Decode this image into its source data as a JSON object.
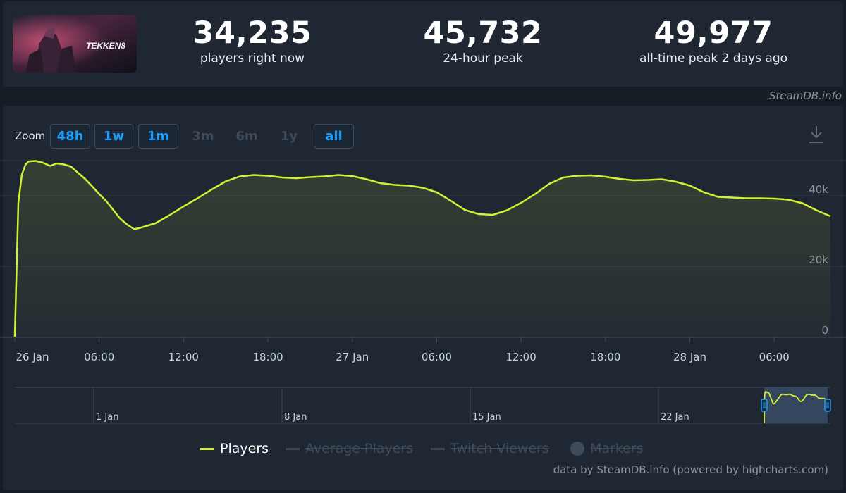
{
  "stats": [
    {
      "value": "34,235",
      "label": "players right now"
    },
    {
      "value": "45,732",
      "label": "24-hour peak"
    },
    {
      "value": "49,977",
      "label": "all-time peak 2 days ago"
    }
  ],
  "game": {
    "logo_text": "TEKKEN8"
  },
  "credit_top": "SteamDB.info",
  "zoom": {
    "label": "Zoom",
    "buttons": [
      {
        "label": "48h",
        "state": "enabled"
      },
      {
        "label": "1w",
        "state": "enabled"
      },
      {
        "label": "1m",
        "state": "enabled"
      },
      {
        "label": "3m",
        "state": "disabled"
      },
      {
        "label": "6m",
        "state": "disabled"
      },
      {
        "label": "1y",
        "state": "disabled"
      },
      {
        "label": "all",
        "state": "selected"
      }
    ]
  },
  "legend": [
    {
      "label": "Players",
      "active": true
    },
    {
      "label": "Average Players",
      "active": false
    },
    {
      "label": "Twitch Viewers",
      "active": false
    },
    {
      "label": "Markers",
      "active": false
    }
  ],
  "credit_bottom": "data by SteamDB.info (powered by highcharts.com)",
  "colors": {
    "series": "#d3f034",
    "grid": "#2c3846",
    "bg": "#1f2733",
    "accent": "#1a9fff",
    "muted": "#3d4b5c"
  },
  "chart_data": {
    "type": "line",
    "title": "",
    "xlabel": "",
    "ylabel": "",
    "ylim": [
      0,
      50000
    ],
    "yticks": [
      0,
      20000,
      40000
    ],
    "ytick_labels": [
      "0",
      "20k",
      "40k"
    ],
    "x_start": "2024-01-26 00:00",
    "x_end": "2024-01-28 10:00",
    "xticks": [
      "2024-01-26 00:00",
      "2024-01-26 06:00",
      "2024-01-26 12:00",
      "2024-01-26 18:00",
      "2024-01-27 00:00",
      "2024-01-27 06:00",
      "2024-01-27 12:00",
      "2024-01-27 18:00",
      "2024-01-28 00:00",
      "2024-01-28 06:00"
    ],
    "xtick_labels": [
      "26 Jan",
      "06:00",
      "12:00",
      "18:00",
      "27 Jan",
      "06:00",
      "12:00",
      "18:00",
      "28 Jan",
      "06:00"
    ],
    "series": [
      {
        "name": "Players",
        "x": [
          "2024-01-26 00:00",
          "2024-01-26 00:15",
          "2024-01-26 00:30",
          "2024-01-26 00:45",
          "2024-01-26 01:00",
          "2024-01-26 01:30",
          "2024-01-26 02:00",
          "2024-01-26 02:30",
          "2024-01-26 03:00",
          "2024-01-26 03:30",
          "2024-01-26 04:00",
          "2024-01-26 04:30",
          "2024-01-26 05:00",
          "2024-01-26 05:30",
          "2024-01-26 06:00",
          "2024-01-26 06:30",
          "2024-01-26 07:00",
          "2024-01-26 07:30",
          "2024-01-26 08:00",
          "2024-01-26 08:30",
          "2024-01-26 09:00",
          "2024-01-26 09:30",
          "2024-01-26 10:00",
          "2024-01-26 11:00",
          "2024-01-26 12:00",
          "2024-01-26 13:00",
          "2024-01-26 14:00",
          "2024-01-26 15:00",
          "2024-01-26 16:00",
          "2024-01-26 17:00",
          "2024-01-26 18:00",
          "2024-01-26 19:00",
          "2024-01-26 20:00",
          "2024-01-26 21:00",
          "2024-01-26 22:00",
          "2024-01-26 23:00",
          "2024-01-27 00:00",
          "2024-01-27 01:00",
          "2024-01-27 02:00",
          "2024-01-27 03:00",
          "2024-01-27 04:00",
          "2024-01-27 05:00",
          "2024-01-27 06:00",
          "2024-01-27 07:00",
          "2024-01-27 08:00",
          "2024-01-27 09:00",
          "2024-01-27 10:00",
          "2024-01-27 11:00",
          "2024-01-27 12:00",
          "2024-01-27 13:00",
          "2024-01-27 14:00",
          "2024-01-27 15:00",
          "2024-01-27 16:00",
          "2024-01-27 17:00",
          "2024-01-27 18:00",
          "2024-01-27 19:00",
          "2024-01-27 20:00",
          "2024-01-27 21:00",
          "2024-01-27 22:00",
          "2024-01-27 23:00",
          "2024-01-28 00:00",
          "2024-01-28 01:00",
          "2024-01-28 02:00",
          "2024-01-28 03:00",
          "2024-01-28 04:00",
          "2024-01-28 05:00",
          "2024-01-28 06:00",
          "2024-01-28 07:00",
          "2024-01-28 08:00",
          "2024-01-28 09:00",
          "2024-01-28 10:00"
        ],
        "values": [
          0,
          38000,
          46000,
          48800,
          49800,
          49900,
          49400,
          48500,
          49200,
          48900,
          48300,
          46500,
          44800,
          42700,
          40500,
          38500,
          36000,
          33500,
          31800,
          30500,
          31000,
          31600,
          32200,
          34500,
          37000,
          39300,
          41800,
          44100,
          45500,
          45900,
          45700,
          45200,
          45000,
          45300,
          45500,
          45900,
          45600,
          44700,
          43600,
          43100,
          42900,
          42300,
          41000,
          38600,
          36000,
          34800,
          34600,
          35900,
          38000,
          40500,
          43400,
          45200,
          45700,
          45800,
          45400,
          44800,
          44400,
          44500,
          44700,
          44000,
          42900,
          41000,
          39700,
          39500,
          39300,
          39300,
          39200,
          38900,
          37900,
          35900,
          34200
        ]
      }
    ],
    "navigator": {
      "xtick_labels": [
        "1 Jan",
        "8 Jan",
        "15 Jan",
        "22 Jan"
      ]
    }
  }
}
